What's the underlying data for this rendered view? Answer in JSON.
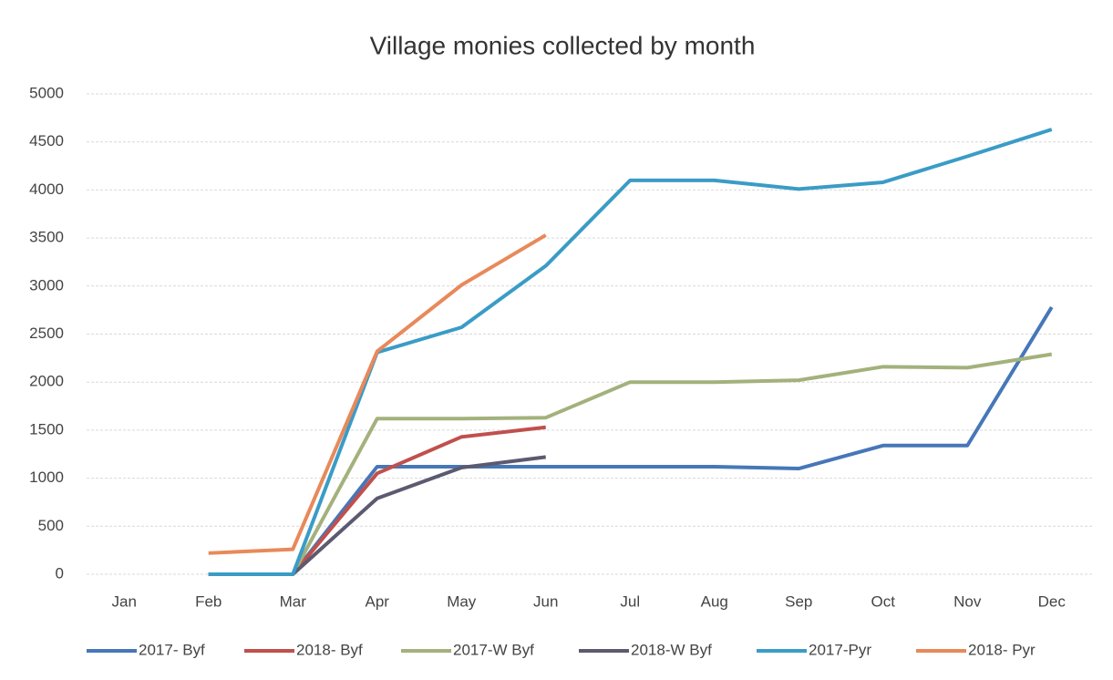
{
  "chart_data": {
    "type": "line",
    "title": "Village monies collected by month",
    "categories": [
      "Jan",
      "Feb",
      "Mar",
      "Apr",
      "May",
      "Jun",
      "Jul",
      "Aug",
      "Sep",
      "Oct",
      "Nov",
      "Dec"
    ],
    "series": [
      {
        "name": "2017- Byf",
        "color": "#4677b8",
        "values": [
          null,
          0,
          0,
          1120,
          1120,
          1120,
          1120,
          1120,
          1100,
          1340,
          1340,
          2780
        ]
      },
      {
        "name": "2018- Byf",
        "color": "#c0504d",
        "values": [
          null,
          0,
          0,
          1050,
          1430,
          1530,
          null,
          null,
          null,
          null,
          null,
          null
        ]
      },
      {
        "name": "2017-W Byf",
        "color": "#a3b17c",
        "values": [
          null,
          0,
          0,
          1620,
          1620,
          1630,
          2000,
          2000,
          2020,
          2160,
          2150,
          2290
        ]
      },
      {
        "name": "2018-W Byf",
        "color": "#5b5a70",
        "values": [
          null,
          0,
          0,
          790,
          1110,
          1220,
          null,
          null,
          null,
          null,
          null,
          null
        ]
      },
      {
        "name": "2017-Pyr",
        "color": "#3a9cc6",
        "values": [
          null,
          0,
          0,
          2310,
          2570,
          3210,
          4100,
          4100,
          4010,
          4080,
          4350,
          4630
        ]
      },
      {
        "name": "2018- Pyr",
        "color": "#e8895a",
        "values": [
          null,
          220,
          260,
          2320,
          3010,
          3530,
          null,
          null,
          null,
          null,
          null,
          null
        ]
      }
    ],
    "ylim": [
      0,
      5000
    ],
    "yticks": [
      0,
      500,
      1000,
      1500,
      2000,
      2500,
      3000,
      3500,
      4000,
      4500,
      5000
    ],
    "grid": true,
    "legend": "bottom"
  }
}
